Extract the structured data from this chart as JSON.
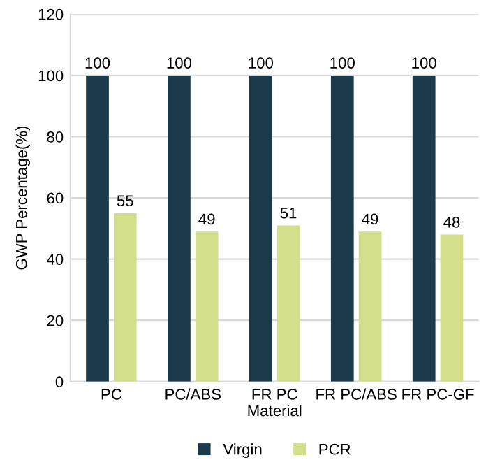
{
  "chart_data": {
    "type": "bar",
    "xlabel": "Material",
    "ylabel": "GWP Percentage(%)",
    "categories": [
      "PC",
      "PC/ABS",
      "FR PC",
      "FR PC/ABS",
      "FR PC-GF"
    ],
    "series": [
      {
        "name": "Virgin",
        "color": "#1b3a4b",
        "values": [
          100,
          100,
          100,
          100,
          100
        ]
      },
      {
        "name": "PCR",
        "color": "#d3df8a",
        "values": [
          55,
          49,
          51,
          49,
          48
        ]
      }
    ],
    "ylim": [
      0,
      120
    ],
    "yticks": [
      0,
      20,
      40,
      60,
      80,
      100,
      120
    ],
    "grid": "y",
    "legend": "bottom",
    "data_labels": true
  }
}
